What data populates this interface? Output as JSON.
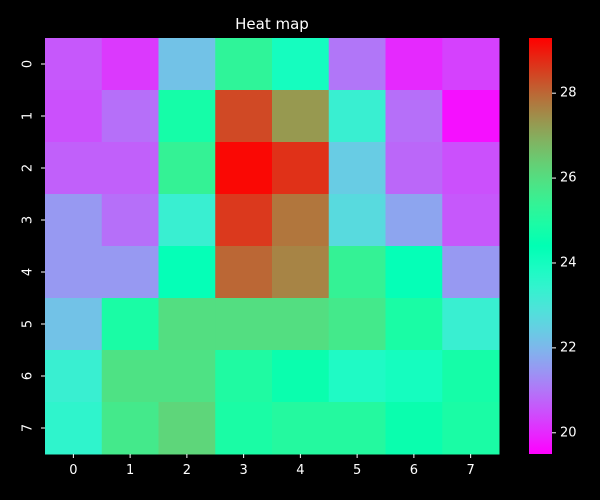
{
  "chart_data": {
    "type": "heatmap",
    "title": "Heat map",
    "xlabel": "",
    "ylabel": "",
    "x_categories": [
      "0",
      "1",
      "2",
      "3",
      "4",
      "5",
      "6",
      "7"
    ],
    "y_categories": [
      "0",
      "1",
      "2",
      "3",
      "4",
      "5",
      "6",
      "7"
    ],
    "values": [
      [
        20.6,
        20.2,
        22.2,
        25.3,
        24.0,
        21.0,
        20.0,
        20.3
      ],
      [
        20.5,
        20.9,
        24.8,
        28.4,
        27.3,
        23.3,
        20.9,
        19.7
      ],
      [
        20.7,
        20.7,
        25.4,
        29.2,
        28.7,
        22.4,
        20.8,
        20.5
      ],
      [
        21.5,
        20.9,
        23.3,
        28.6,
        27.8,
        22.7,
        21.7,
        20.6
      ],
      [
        21.5,
        21.5,
        24.3,
        28.0,
        27.6,
        25.4,
        24.3,
        21.5
      ],
      [
        22.2,
        24.9,
        26.0,
        26.0,
        26.0,
        25.7,
        24.9,
        23.3
      ],
      [
        23.3,
        25.9,
        25.9,
        25.0,
        24.6,
        23.8,
        24.0,
        24.8
      ],
      [
        23.5,
        25.7,
        26.2,
        24.9,
        25.1,
        25.1,
        24.6,
        24.9
      ]
    ],
    "colorbar": {
      "vmin": 19.5,
      "vmax": 29.3,
      "ticks": [
        20,
        22,
        24,
        26,
        28
      ],
      "colormap": "rainbow"
    },
    "grid": false,
    "legend": "right-colorbar"
  }
}
